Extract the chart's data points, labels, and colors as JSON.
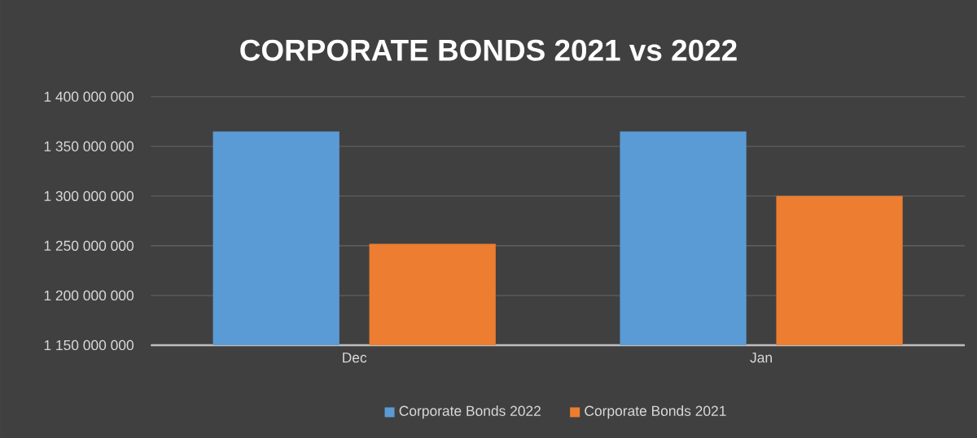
{
  "chart_data": {
    "type": "bar",
    "title": "CORPORATE BONDS 2021 vs 2022",
    "categories": [
      "Dec",
      "Jan"
    ],
    "series": [
      {
        "name": "Corporate Bonds 2022",
        "color": "#5b9bd5",
        "values": [
          1365000000,
          1365000000
        ]
      },
      {
        "name": "Corporate Bonds 2021",
        "color": "#ed7d31",
        "values": [
          1252000000,
          1300000000
        ]
      }
    ],
    "ylim": [
      1150000000,
      1400000000
    ],
    "yticks": [
      {
        "value": 1150000000,
        "label": "1 150 000 000"
      },
      {
        "value": 1200000000,
        "label": "1 200 000 000"
      },
      {
        "value": 1250000000,
        "label": "1 250 000 000"
      },
      {
        "value": 1300000000,
        "label": "1 300 000 000"
      },
      {
        "value": 1350000000,
        "label": "1 350 000 000"
      },
      {
        "value": 1400000000,
        "label": "1 400 000 000"
      }
    ],
    "grid": "y",
    "legend": "bottom"
  }
}
